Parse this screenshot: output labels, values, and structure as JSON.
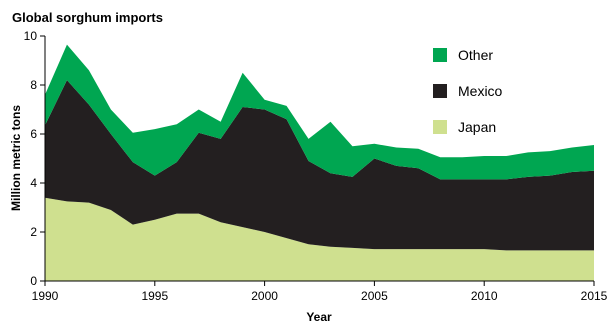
{
  "chart_data": {
    "type": "area",
    "stacked": true,
    "title": "Global sorghum imports",
    "xlabel": "Year",
    "ylabel": "Million metric tons",
    "xlim": [
      1990,
      2015
    ],
    "ylim": [
      0,
      10
    ],
    "xticks": [
      1990,
      1995,
      2000,
      2005,
      2010,
      2015
    ],
    "yticks": [
      0,
      2,
      4,
      6,
      8,
      10
    ],
    "x": [
      1990,
      1991,
      1992,
      1993,
      1994,
      1995,
      1996,
      1997,
      1998,
      1999,
      2000,
      2001,
      2002,
      2003,
      2004,
      2005,
      2006,
      2007,
      2008,
      2009,
      2010,
      2011,
      2012,
      2013,
      2014,
      2015
    ],
    "series": [
      {
        "name": "Japan",
        "color": "#cfe08f",
        "values": [
          3.4,
          3.25,
          3.2,
          2.9,
          2.3,
          2.5,
          2.75,
          2.75,
          2.4,
          2.2,
          2.0,
          1.75,
          1.5,
          1.4,
          1.35,
          1.3,
          1.3,
          1.3,
          1.3,
          1.3,
          1.3,
          1.25,
          1.25,
          1.25,
          1.25,
          1.25
        ]
      },
      {
        "name": "Mexico",
        "color": "#231f20",
        "values": [
          2.95,
          4.95,
          4.0,
          3.1,
          2.55,
          1.8,
          2.1,
          3.3,
          3.4,
          4.9,
          5.0,
          4.85,
          3.4,
          3.0,
          2.9,
          3.7,
          3.4,
          3.3,
          2.85,
          2.85,
          2.85,
          2.9,
          3.0,
          3.05,
          3.2,
          3.25
        ]
      },
      {
        "name": "Other",
        "color": "#00a651",
        "values": [
          1.25,
          1.45,
          1.4,
          1.0,
          1.2,
          1.9,
          1.55,
          0.95,
          0.7,
          1.4,
          0.4,
          0.55,
          0.9,
          2.1,
          1.25,
          0.6,
          0.75,
          0.8,
          0.9,
          0.9,
          0.95,
          0.95,
          1.0,
          1.0,
          1.0,
          1.05
        ]
      }
    ],
    "legend": {
      "placement": "top-right",
      "order": [
        "Other",
        "Mexico",
        "Japan"
      ]
    },
    "grid": false
  }
}
